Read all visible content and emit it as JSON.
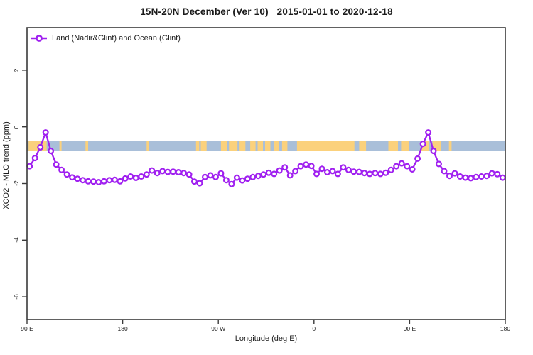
{
  "title": "15N-20N December (Ver 10)   2015-01-01 to 2020-12-18",
  "legend": {
    "label": "Land (Nadir&Glint) and Ocean (Glint)"
  },
  "colors": {
    "series": "#A020F0",
    "marker_fill": "#ffffff",
    "ocean": "#A9BFD9",
    "land": "#FBD17C",
    "axis": "#3a3a3a",
    "text": "#1a1a1a"
  },
  "chart_data": {
    "type": "line",
    "title": "15N-20N December (Ver 10)   2015-01-01 to 2020-12-18",
    "xlabel": "Longitude (deg E)",
    "ylabel": "XCO2 - MLO trend (ppm)",
    "xlim": [
      90,
      540
    ],
    "ylim": [
      -6.8,
      3.5
    ],
    "grid": false,
    "legend_position": "top-left-inside",
    "x_axis_note": "longitude wraps eastward: 90E to 180, 90W, 0, 90E, 180",
    "x_ticks": [
      {
        "lon": 90,
        "label": "90 E"
      },
      {
        "lon": 180,
        "label": "180"
      },
      {
        "lon": 270,
        "label": "90 W"
      },
      {
        "lon": 360,
        "label": "0"
      },
      {
        "lon": 450,
        "label": "90 E"
      },
      {
        "lon": 540,
        "label": "180"
      }
    ],
    "y_ticks": [
      2,
      0,
      -2,
      -4,
      -6
    ],
    "land_ocean_band": {
      "y_range": [
        -0.49,
        -0.84
      ],
      "ocean_color": "#A9BFD9",
      "land_color": "#FBD17C",
      "land_segments": [
        [
          91.5,
          102.5
        ],
        [
          104,
          108.5
        ],
        [
          120.5,
          122.5
        ],
        [
          145,
          147.5
        ],
        [
          202.5,
          205
        ],
        [
          249,
          252
        ],
        [
          253.5,
          259
        ],
        [
          272.5,
          278
        ],
        [
          280,
          288
        ],
        [
          290,
          295.5
        ],
        [
          300,
          305
        ],
        [
          307,
          312
        ],
        [
          314,
          319
        ],
        [
          322,
          327
        ],
        [
          330,
          335
        ],
        [
          344,
          398
        ],
        [
          402.5,
          409
        ],
        [
          430,
          439
        ],
        [
          442,
          449.5
        ],
        [
          461,
          468
        ],
        [
          471.5,
          479.5
        ],
        [
          487,
          489.5
        ]
      ]
    },
    "series": [
      {
        "name": "Land (Nadir&Glint) and Ocean (Glint)",
        "x": [
          92.5,
          97.5,
          102.5,
          107.5,
          112.5,
          117.5,
          122.5,
          127.5,
          132.5,
          137.5,
          142.5,
          147.5,
          152.5,
          157.5,
          162.5,
          167.5,
          172.5,
          177.5,
          182.5,
          187.5,
          192.5,
          197.5,
          202.5,
          207.5,
          212.5,
          217.5,
          222.5,
          227.5,
          232.5,
          237.5,
          242.5,
          247.5,
          252.5,
          257.5,
          262.5,
          267.5,
          272.5,
          277.5,
          282.5,
          287.5,
          292.5,
          297.5,
          302.5,
          307.5,
          312.5,
          317.5,
          322.5,
          327.5,
          332.5,
          337.5,
          342.5,
          347.5,
          352.5,
          357.5,
          362.5,
          367.5,
          372.5,
          377.5,
          382.5,
          387.5,
          392.5,
          397.5,
          402.5,
          407.5,
          412.5,
          417.5,
          422.5,
          427.5,
          432.5,
          437.5,
          442.5,
          447.5,
          452.5,
          457.5,
          462.5,
          467.5,
          472.5,
          477.5,
          482.5,
          487.5,
          492.5,
          497.5,
          502.5,
          507.5,
          512.5,
          517.5,
          522.5,
          527.5,
          532.5,
          537.5
        ],
        "y": [
          -1.39,
          -1.1,
          -0.72,
          -0.2,
          -0.85,
          -1.33,
          -1.52,
          -1.68,
          -1.78,
          -1.83,
          -1.88,
          -1.92,
          -1.93,
          -1.95,
          -1.92,
          -1.88,
          -1.87,
          -1.92,
          -1.82,
          -1.75,
          -1.8,
          -1.75,
          -1.68,
          -1.54,
          -1.63,
          -1.56,
          -1.59,
          -1.58,
          -1.6,
          -1.63,
          -1.68,
          -1.93,
          -1.99,
          -1.77,
          -1.71,
          -1.77,
          -1.64,
          -1.88,
          -2.02,
          -1.79,
          -1.89,
          -1.83,
          -1.77,
          -1.73,
          -1.68,
          -1.62,
          -1.66,
          -1.54,
          -1.43,
          -1.71,
          -1.56,
          -1.39,
          -1.33,
          -1.38,
          -1.66,
          -1.48,
          -1.6,
          -1.56,
          -1.66,
          -1.43,
          -1.52,
          -1.58,
          -1.59,
          -1.63,
          -1.66,
          -1.63,
          -1.66,
          -1.62,
          -1.52,
          -1.39,
          -1.29,
          -1.39,
          -1.5,
          -1.12,
          -0.6,
          -0.2,
          -0.85,
          -1.31,
          -1.56,
          -1.73,
          -1.64,
          -1.75,
          -1.79,
          -1.81,
          -1.77,
          -1.75,
          -1.73,
          -1.64,
          -1.67,
          -1.79
        ]
      }
    ]
  }
}
